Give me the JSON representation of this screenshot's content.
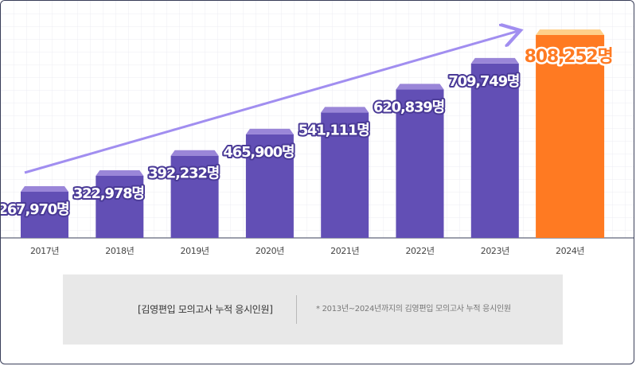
{
  "chart_data": {
    "type": "bar",
    "categories": [
      "2017년",
      "2018년",
      "2019년",
      "2020년",
      "2021년",
      "2022년",
      "2023년",
      "2024년"
    ],
    "values": [
      267970,
      322978,
      392232,
      465900,
      541111,
      620839,
      709749,
      808252
    ],
    "value_labels": [
      "267,970명",
      "322,978명",
      "392,232명",
      "465,900명",
      "541,111명",
      "620,839명",
      "709,749명",
      "808,252명"
    ],
    "highlight_index": 7,
    "highlight_marker": "*",
    "colors": {
      "bar": "#624fb5",
      "bar_top": "#9a86d8",
      "highlight": "#ff7a22",
      "highlight_top": "#ffd08a",
      "arrow": "#a18ef0",
      "highlight_label": "#ff7a22",
      "label": "#ffffff",
      "label_stroke": "#4a3a97"
    },
    "grid": true,
    "legend": "none"
  },
  "caption": {
    "title": "[김영편입 모의고사 누적 응시인원]",
    "note": "* 2013년~2024년까지의 김영편입 모의고사 누적 응시인원"
  }
}
